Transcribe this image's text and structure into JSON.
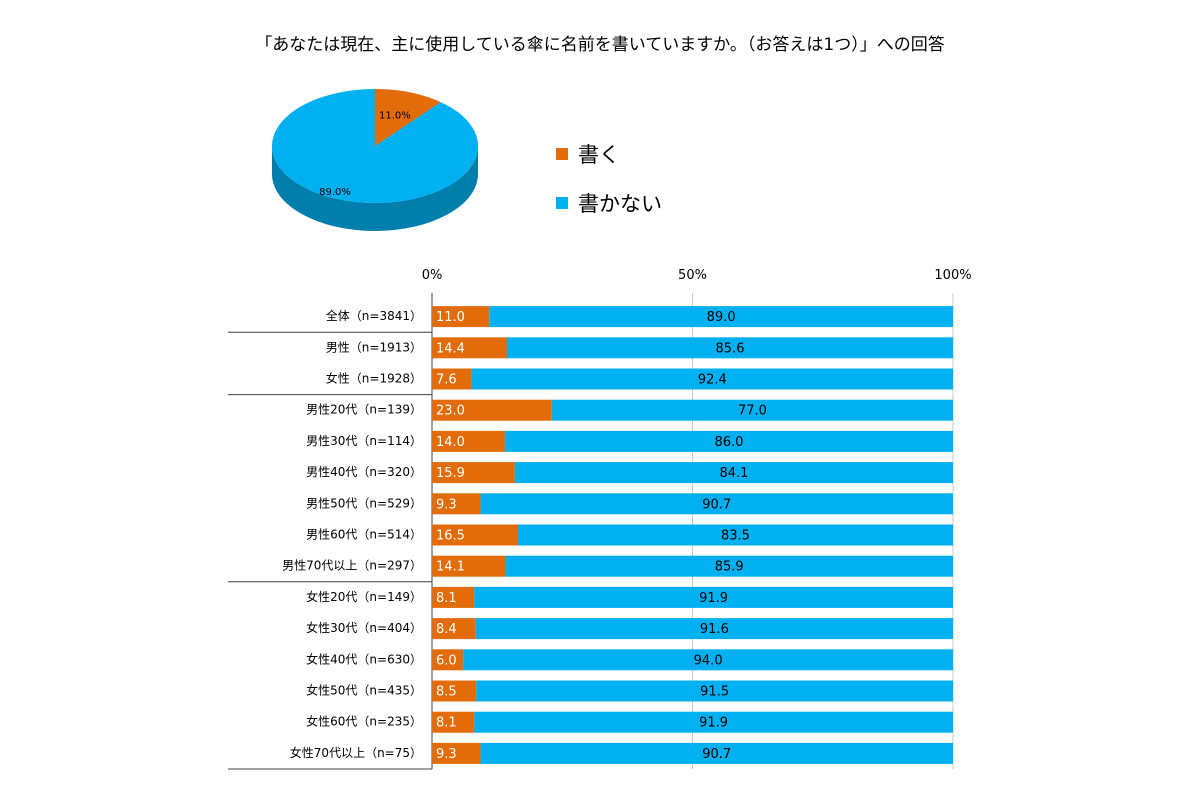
{
  "chart_data": [
    {
      "type": "pie",
      "title": "「あなたは現在、主に使用している傘に名前を書いていますか。（お答えは1つ）」への回答",
      "slices": [
        {
          "name": "書く",
          "value": 11.0,
          "label": "11.0%",
          "color": "#e26b0a"
        },
        {
          "name": "書かない",
          "value": 89.0,
          "label": "89.0%",
          "color": "#00b0f0"
        }
      ],
      "legend": [
        {
          "name": "書く",
          "color": "#e26b0a"
        },
        {
          "name": "書かない",
          "color": "#00b0f0"
        }
      ],
      "legend_position": "right"
    },
    {
      "type": "bar",
      "orientation": "horizontal",
      "stacked": true,
      "xlim": [
        0,
        100
      ],
      "ticks": [
        "0%",
        "50%",
        "100%"
      ],
      "categories": [
        "全体（n=3841）",
        "男性（n=1913）",
        "女性（n=1928）",
        "男性20代（n=139）",
        "男性30代（n=114）",
        "男性40代（n=320）",
        "男性50代（n=529）",
        "男性60代（n=514）",
        "男性70代以上（n=297）",
        "女性20代（n=149）",
        "女性30代（n=404）",
        "女性40代（n=630）",
        "女性50代（n=435）",
        "女性60代（n=235）",
        "女性70代以上（n=75）"
      ],
      "group_separators_after": [
        0,
        2,
        8
      ],
      "series": [
        {
          "name": "書く",
          "color": "#e26b0a",
          "values": [
            11.0,
            14.4,
            7.6,
            23.0,
            14.0,
            15.9,
            9.3,
            16.5,
            14.1,
            8.1,
            8.4,
            6.0,
            8.5,
            8.1,
            9.3
          ],
          "labels": [
            "11.0",
            "14.4",
            "7.6",
            "23.0",
            "14.0",
            "15.9",
            "9.3",
            "16.5",
            "14.1",
            "8.1",
            "8.4",
            "6.0",
            "8.5",
            "8.1",
            "9.3"
          ]
        },
        {
          "name": "書かない",
          "color": "#00b0f0",
          "values": [
            89.0,
            85.6,
            92.4,
            77.0,
            86.0,
            84.1,
            90.7,
            83.5,
            85.9,
            91.9,
            91.6,
            94.0,
            91.5,
            91.9,
            90.7
          ],
          "labels": [
            "89.0",
            "85.6",
            "92.4",
            "77.0",
            "86.0",
            "84.1",
            "90.7",
            "83.5",
            "85.9",
            "91.9",
            "91.6",
            "94.0",
            "91.5",
            "91.9",
            "90.7"
          ]
        }
      ]
    }
  ]
}
